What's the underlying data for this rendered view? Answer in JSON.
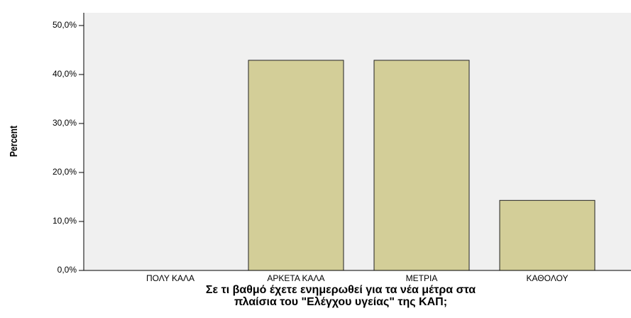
{
  "chart_data": {
    "type": "bar",
    "categories": [
      "ΠΟΛΥ ΚΑΛΑ",
      "ΑΡΚΕΤΑ ΚΑΛΑ",
      "ΜΕΤΡΙΑ",
      "ΚΑΘΟΛΟΥ"
    ],
    "values": [
      0,
      42.9,
      42.9,
      14.3
    ],
    "color": "#d3ce98",
    "ylabel": "Percent",
    "xlabel": [
      "Σε τι βαθμό έχετε ενημερωθεί για τα νέα μέτρα στα",
      "πλαίσια του \"Ελέγχου υγείας\" της ΚΑΠ;"
    ],
    "ylim": [
      0,
      52.6
    ],
    "yticks": [
      {
        "value": 0,
        "label": "0,0%"
      },
      {
        "value": 10,
        "label": "10,0%"
      },
      {
        "value": 20,
        "label": "20,0%"
      },
      {
        "value": 30,
        "label": "30,0%"
      },
      {
        "value": 40,
        "label": "40,0%"
      },
      {
        "value": 50,
        "label": "50,0%"
      }
    ]
  }
}
